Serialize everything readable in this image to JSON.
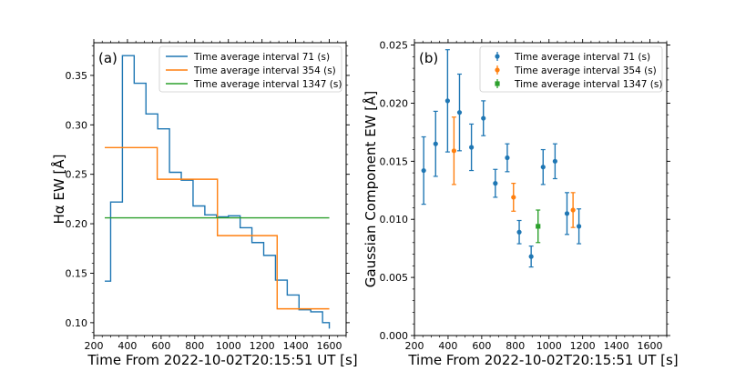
{
  "chart_data": [
    {
      "type": "line",
      "panel_label": "(a)",
      "xlabel": "Time From 2022-10-02T20:15:51 UT [s]",
      "ylabel": "Hα EW [Å]",
      "xlim": [
        200,
        1700
      ],
      "ylim": [
        0.087,
        0.383
      ],
      "xticks": [
        200,
        400,
        600,
        800,
        1000,
        1200,
        1400,
        1600
      ],
      "yticks": [
        0.1,
        0.15,
        0.2,
        0.25,
        0.3,
        0.35
      ],
      "ytick_labels": [
        "0.10",
        "0.15",
        "0.20",
        "0.25",
        "0.30",
        "0.35"
      ],
      "legend_position": "top-right",
      "series": [
        {
          "name": "Time average interval 71 (s)",
          "color": "#1f77b4",
          "step": "post",
          "x": [
            265,
            300,
            370,
            440,
            510,
            580,
            650,
            720,
            790,
            860,
            930,
            1000,
            1070,
            1140,
            1210,
            1280,
            1350,
            1420,
            1490,
            1560,
            1600
          ],
          "y": [
            0.142,
            0.222,
            0.37,
            0.342,
            0.311,
            0.296,
            0.252,
            0.244,
            0.218,
            0.209,
            0.207,
            0.208,
            0.196,
            0.181,
            0.168,
            0.143,
            0.128,
            0.113,
            0.111,
            0.1,
            0.094
          ]
        },
        {
          "name": "Time average interval 354 (s)",
          "color": "#ff7f0e",
          "step": "post",
          "x": [
            265,
            577,
            935,
            1290,
            1600
          ],
          "y": [
            0.277,
            0.245,
            0.188,
            0.114,
            0.114
          ]
        },
        {
          "name": "Time average interval 1347 (s)",
          "color": "#2ca02c",
          "step": "post",
          "x": [
            265,
            1600
          ],
          "y": [
            0.206,
            0.206
          ]
        }
      ]
    },
    {
      "type": "scatter",
      "panel_label": "(b)",
      "xlabel": "Time From 2022-10-02T20:15:51 UT [s]",
      "ylabel": "Gaussian Component EW [Å]",
      "xlim": [
        200,
        1700
      ],
      "ylim": [
        0.0,
        0.0252
      ],
      "xticks": [
        200,
        400,
        600,
        800,
        1000,
        1200,
        1400,
        1600
      ],
      "yticks": [
        0.0,
        0.005,
        0.01,
        0.015,
        0.02,
        0.025
      ],
      "ytick_labels": [
        "0.000",
        "0.005",
        "0.010",
        "0.015",
        "0.020",
        "0.025"
      ],
      "legend_position": "top-right",
      "series": [
        {
          "name": "Time average interval 71 (s)",
          "color": "#1f77b4",
          "marker": "circle",
          "x": [
            255,
            326,
            397,
            468,
            539,
            610,
            681,
            752,
            823,
            894,
            965,
            1036,
            1107,
            1178
          ],
          "y": [
            0.0142,
            0.0165,
            0.0202,
            0.0192,
            0.0162,
            0.0187,
            0.0131,
            0.0153,
            0.0089,
            0.0068,
            0.0145,
            0.015,
            0.0105,
            0.0094
          ],
          "err": [
            0.0029,
            0.0028,
            0.0044,
            0.0033,
            0.002,
            0.0015,
            0.0012,
            0.0012,
            0.001,
            0.0009,
            0.0015,
            0.0015,
            0.0018,
            0.0015
          ]
        },
        {
          "name": "Time average interval 354 (s)",
          "color": "#ff7f0e",
          "marker": "circle",
          "x": [
            435,
            789,
            1143
          ],
          "y": [
            0.0159,
            0.0119,
            0.0108
          ],
          "err": [
            0.0029,
            0.0012,
            0.0015
          ]
        },
        {
          "name": "Time average interval 1347 (s)",
          "color": "#2ca02c",
          "marker": "square",
          "x": [
            935
          ],
          "y": [
            0.0094
          ],
          "err": [
            0.0014
          ]
        }
      ]
    }
  ]
}
